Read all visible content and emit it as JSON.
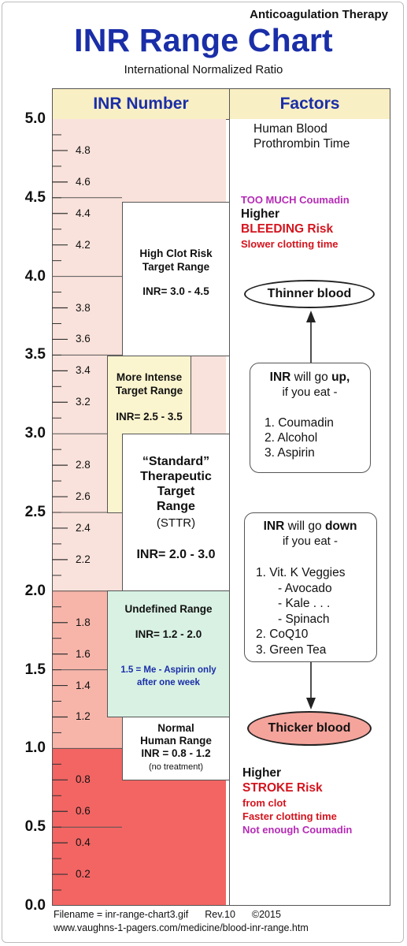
{
  "header": {
    "subtitle": "Anticoagulation Therapy",
    "title": "INR Range Chart",
    "tagline": "International Normalized Ratio"
  },
  "columns": {
    "left": "INR Number",
    "right": "Factors"
  },
  "axis": {
    "major": [
      "5.0",
      "4.5",
      "4.0",
      "3.5",
      "3.0",
      "2.5",
      "2.0",
      "1.5",
      "1.0",
      "0.5",
      "0.0"
    ],
    "minor": [
      "4.8",
      "4.6",
      "4.4",
      "4.2",
      "3.8",
      "3.6",
      "3.4",
      "3.2",
      "2.8",
      "2.6",
      "2.4",
      "2.2",
      "1.8",
      "1.6",
      "1.4",
      "1.2",
      "0.8",
      "0.6",
      "0.4",
      "0.2"
    ]
  },
  "ranges": {
    "high": {
      "line1": "High Clot Risk",
      "line2": "Target Range",
      "inr": "INR= 3.0 - 4.5"
    },
    "intense": {
      "line1": "More Intense",
      "line2": "Target Range",
      "inr": "INR= 2.5 - 3.5"
    },
    "standard": {
      "line1": "“Standard”",
      "line2": "Therapeutic",
      "line3": "Target",
      "line4": "Range",
      "abbr": "(STTR)",
      "inr": "INR= 2.0 - 3.0"
    },
    "undefined": {
      "line1": "Undefined Range",
      "inr": "INR= 1.2 - 2.0",
      "note1": "1.5 = Me - Aspirin only",
      "note2": "after one week"
    },
    "normal": {
      "line1": "Normal",
      "line2": "Human Range",
      "inr": "INR = 0.8 - 1.2",
      "note": "(no treatment)"
    }
  },
  "factors": {
    "blood_line1": "Human Blood",
    "blood_line2": "Prothrombin Time",
    "too_much": "TOO MUCH Coumadin",
    "higher_top": "Higher",
    "bleeding": "BLEEDING Risk",
    "slower": "Slower clotting time",
    "thinner": "Thinner blood",
    "up_box": {
      "inr": "INR",
      "will_go": " will go ",
      "up": "up,",
      "if_eat": "if you eat -",
      "items": [
        "1. Coumadin",
        "2. Alcohol",
        "3. Aspirin"
      ]
    },
    "down_box": {
      "inr": "INR",
      "will_go": " will go ",
      "down": "down",
      "if_eat": "if you eat -",
      "items": [
        "1. Vit. K Veggies",
        "- Avocado",
        "- Kale . . .",
        "- Spinach",
        "2. CoQ10",
        "3. Green Tea"
      ]
    },
    "thicker": "Thicker blood",
    "higher_bottom": "Higher",
    "stroke": "STROKE Risk",
    "from_clot": "from clot",
    "faster": "Faster clotting time",
    "not_enough": "Not enough Coumadin"
  },
  "footer": {
    "filename": "Filename = inr-range-chart3.gif",
    "rev": "Rev.10",
    "copyright": "©2015",
    "url": "www.vaughns-1-pagers.com/medicine/blood-inr-range.htm"
  },
  "colors": {
    "title": "#1a2ea8",
    "header_bg": "#f9efc4",
    "band_high": "#f9e2db",
    "band_low": "#f7b5aa",
    "band_bottom": "#f26563",
    "intense_bg": "#fbf5cf",
    "undefined_bg": "#d8f1e3",
    "thicker_bg": "#f5a49c",
    "red": "#d4141e",
    "magenta": "#b52bb5"
  }
}
